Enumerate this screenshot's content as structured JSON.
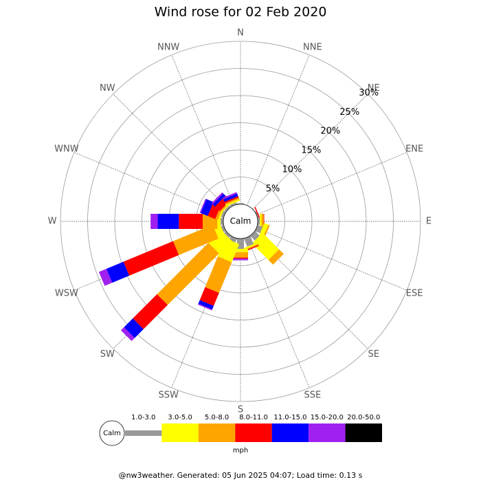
{
  "chart_data": {
    "type": "windrose",
    "title": "Wind rose for 02 Feb 2020",
    "categories": [
      "N",
      "NNE",
      "NE",
      "ENE",
      "E",
      "ESE",
      "SE",
      "SSE",
      "S",
      "SSW",
      "SW",
      "WSW",
      "W",
      "WNW",
      "NW",
      "NNW"
    ],
    "series": [
      {
        "name": "1.0-3.0",
        "color": "#999999",
        "values": [
          0.2,
          0,
          0,
          0.2,
          0.4,
          1.0,
          1.2,
          1.6,
          1.9,
          0.8,
          0.5,
          0.5,
          0.5,
          0.5,
          0.4,
          0.4
        ]
      },
      {
        "name": "3.0-5.0",
        "color": "#ffff00",
        "values": [
          0,
          0,
          0,
          0,
          0.3,
          0.8,
          4.3,
          0.3,
          0.6,
          3.6,
          3.3,
          1.3,
          0.6,
          0.3,
          0.2,
          0.3
        ]
      },
      {
        "name": "5.0-8.0",
        "color": "#ffa500",
        "values": [
          0,
          0,
          0,
          0,
          0.4,
          0.3,
          1.2,
          0.2,
          1.0,
          6.1,
          13.4,
          7.9,
          2.7,
          0.5,
          0.3,
          0.3
        ]
      },
      {
        "name": "8.0-11.0",
        "color": "#ff0000",
        "values": [
          0,
          0,
          0,
          0.2,
          0.1,
          0,
          0,
          0.2,
          0.2,
          2.6,
          6.3,
          9.9,
          4.4,
          1.5,
          1.2,
          0.3
        ]
      },
      {
        "name": "11.0-15.0",
        "color": "#0000ff",
        "values": [
          0,
          0,
          0,
          0,
          0,
          0,
          0,
          0,
          0,
          0.7,
          2.3,
          3.4,
          3.9,
          1.4,
          0.6,
          0.5
        ]
      },
      {
        "name": "15.0-20.0",
        "color": "#a020f0",
        "values": [
          0,
          0,
          0,
          0,
          0,
          0,
          0,
          0,
          0.3,
          0.2,
          0.8,
          1.5,
          1.3,
          0.2,
          0.3,
          0.3
        ]
      },
      {
        "name": "20.0-50.0",
        "color": "#000000",
        "values": [
          0,
          0,
          0,
          0,
          0,
          0,
          0,
          0,
          0,
          0,
          0,
          0,
          0,
          0,
          0,
          0
        ]
      }
    ],
    "rlim": [
      0,
      30
    ],
    "rticks": [
      {
        "value": 5,
        "label": "5%"
      },
      {
        "value": 10,
        "label": "10%"
      },
      {
        "value": 15,
        "label": "15%"
      },
      {
        "value": 20,
        "label": "20%"
      },
      {
        "value": 25,
        "label": "25%"
      },
      {
        "value": 30,
        "label": "30%"
      }
    ],
    "center_label": "Calm",
    "unit_label": "mph"
  },
  "footer": "@nw3weather. Generated: 05 Jun 2025 04:07; Load time: 0.13 s"
}
